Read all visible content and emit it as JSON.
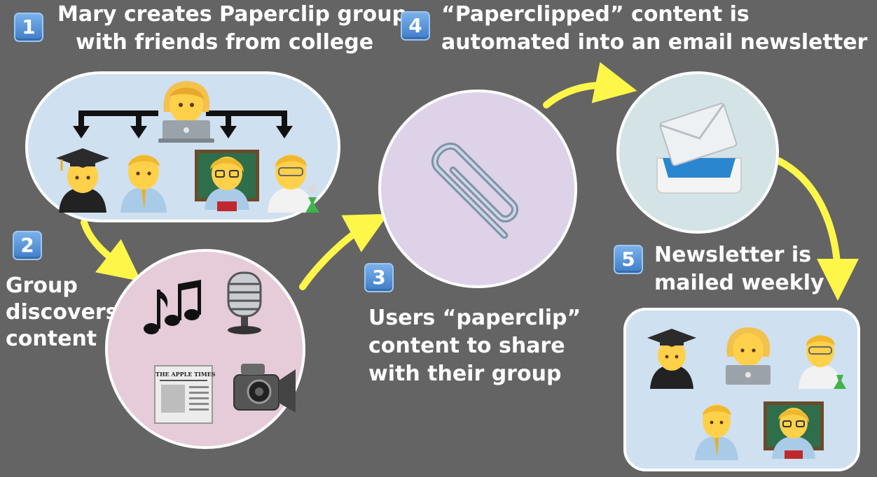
{
  "steps": [
    {
      "number": "1",
      "lines": [
        "Mary creates Paperclip group",
        "with friends from college"
      ]
    },
    {
      "number": "2",
      "lines": [
        "Group",
        "discovers",
        "content"
      ]
    },
    {
      "number": "3",
      "lines": [
        "Users “paperclip”",
        "content to share",
        "with their group"
      ]
    },
    {
      "number": "4",
      "lines": [
        "“Paperclipped” content is",
        "automated into an email newsletter"
      ]
    },
    {
      "number": "5",
      "lines": [
        "Newsletter is",
        "mailed weekly"
      ]
    }
  ],
  "newspaper_masthead": "THE APPLE TIMES",
  "colors": {
    "background": "#646464",
    "arrow": "#fff64a",
    "group_panel": "#cfe0f0",
    "content_panel": "#e5ccd8",
    "paperclip_panel": "#ddd2e8",
    "email_panel": "#d3e3e6",
    "badge": "#4f8fd8"
  },
  "icons": {
    "group": [
      "woman-technologist-icon",
      "graduate-icon",
      "man-icon",
      "woman-teacher-icon",
      "man-scientist-icon"
    ],
    "content": [
      "musical-notes-icon",
      "microphone-icon",
      "newspaper-icon",
      "video-camera-icon"
    ],
    "share": "paperclip-icon",
    "email": "inbox-tray-envelope-icon"
  }
}
